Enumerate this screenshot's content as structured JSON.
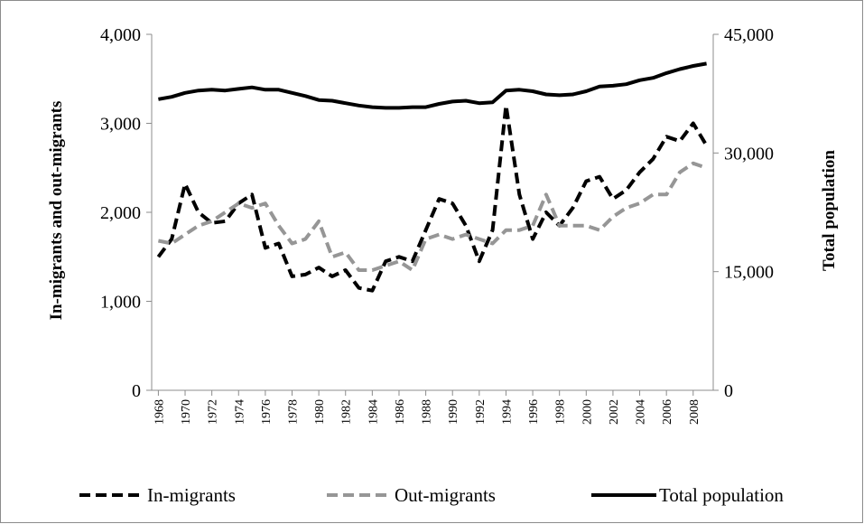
{
  "chart_data": {
    "type": "line",
    "y_label": "In-migrants and out-migrants",
    "y2_label": "Total population",
    "x": [
      1968,
      1969,
      1970,
      1971,
      1972,
      1973,
      1974,
      1975,
      1976,
      1977,
      1978,
      1979,
      1980,
      1981,
      1982,
      1983,
      1984,
      1985,
      1986,
      1987,
      1988,
      1989,
      1990,
      1991,
      1992,
      1993,
      1994,
      1995,
      1996,
      1997,
      1998,
      1999,
      2000,
      2001,
      2002,
      2003,
      2004,
      2005,
      2006,
      2007,
      2008,
      2009
    ],
    "xlim": [
      1967.5,
      2009.5
    ],
    "xticks": [
      1968,
      1970,
      1972,
      1974,
      1976,
      1978,
      1980,
      1982,
      1984,
      1986,
      1988,
      1990,
      1992,
      1994,
      1996,
      1998,
      2000,
      2002,
      2004,
      2006,
      2008
    ],
    "ylim": [
      0,
      4000
    ],
    "yticks": [
      0,
      {
        "value": 1000,
        "label": "1,000"
      },
      {
        "value": 2000,
        "label": "2,000"
      },
      {
        "value": 3000,
        "label": "3,000"
      },
      {
        "value": 4000,
        "label": "4,000"
      }
    ],
    "y2lim": [
      0,
      45000
    ],
    "y2ticks": [
      0,
      {
        "value": 15000,
        "label": "15,000"
      },
      {
        "value": 30000,
        "label": "30,000"
      },
      {
        "value": 45000,
        "label": "45,000"
      }
    ],
    "legend": "bottom",
    "series": [
      {
        "name": "In-migrants",
        "color": "#000000",
        "dash": true,
        "values": [
          1500,
          1700,
          2320,
          2000,
          1880,
          1900,
          2100,
          2200,
          1600,
          1650,
          1280,
          1300,
          1380,
          1280,
          1350,
          1150,
          1120,
          1450,
          1500,
          1450,
          1800,
          2150,
          2100,
          1850,
          1450,
          1800,
          3200,
          2200,
          1700,
          2000,
          1850,
          2050,
          2350,
          2400,
          2150,
          2250,
          2450,
          2600,
          2850,
          2800,
          3000,
          2750
        ]
      },
      {
        "name": "Out-migrants",
        "color": "#969696",
        "dash": true,
        "values": [
          1680,
          1650,
          1750,
          1850,
          1900,
          2000,
          2100,
          2050,
          2100,
          1850,
          1650,
          1700,
          1900,
          1500,
          1550,
          1350,
          1350,
          1400,
          1450,
          1350,
          1700,
          1750,
          1700,
          1750,
          1700,
          1650,
          1800,
          1800,
          1850,
          2200,
          1850,
          1850,
          1850,
          1800,
          1950,
          2050,
          2100,
          2200,
          2200,
          2450,
          2550,
          2500
        ]
      },
      {
        "name": "Total population",
        "color": "#000000",
        "dash": false,
        "axis": "y2",
        "values": [
          36800,
          37100,
          37600,
          37900,
          38000,
          37900,
          38100,
          38300,
          38000,
          38000,
          37600,
          37200,
          36700,
          36600,
          36300,
          36000,
          35800,
          35700,
          35700,
          35800,
          35800,
          36200,
          36500,
          36600,
          36300,
          36400,
          37900,
          38000,
          37800,
          37400,
          37300,
          37400,
          37800,
          38400,
          38500,
          38700,
          39200,
          39500,
          40100,
          40600,
          41000,
          41300
        ]
      }
    ]
  }
}
